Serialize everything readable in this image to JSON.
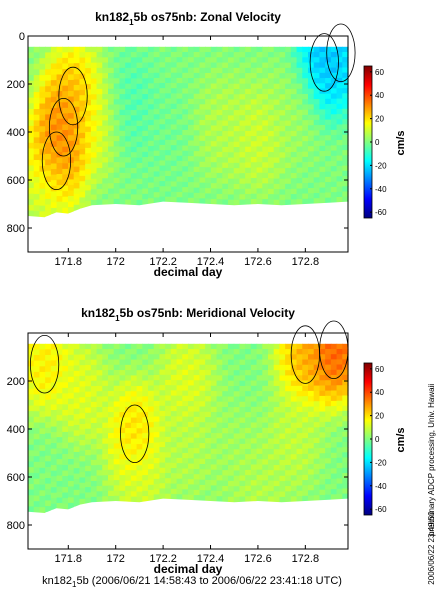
{
  "chart_data": [
    {
      "type": "heatmap",
      "title": "kn182_5b os75nb: Zonal Velocity",
      "title_main": "kn182",
      "title_sub": "1",
      "title_rest": "5b os75nb: Zonal Velocity",
      "xlabel": "decimal day",
      "ylabel": "",
      "xlim": [
        171.63,
        172.98
      ],
      "ylim": [
        900,
        0
      ],
      "x_ticks": [
        "171.8",
        "172",
        "172.2",
        "172.4",
        "172.6",
        "172.8"
      ],
      "x_tick_values": [
        171.8,
        172.0,
        172.2,
        172.4,
        172.6,
        172.8
      ],
      "y_ticks": [
        "0",
        "200",
        "400",
        "600",
        "800"
      ],
      "y_tick_values": [
        0,
        200,
        400,
        600,
        800
      ],
      "data_top_depth": 45,
      "colorbar": {
        "label": "cm/s",
        "range": [
          -65,
          65
        ],
        "ticks": [
          "60",
          "40",
          "20",
          "0",
          "-20",
          "-40",
          "-60"
        ],
        "tick_values": [
          60,
          40,
          20,
          0,
          -20,
          -40,
          -60
        ]
      },
      "bottom_depth_profile": {
        "x": [
          171.63,
          171.7,
          171.75,
          171.8,
          171.85,
          171.9,
          172.0,
          172.1,
          172.2,
          172.3,
          172.4,
          172.5,
          172.6,
          172.7,
          172.8,
          172.9,
          172.98
        ],
        "depth": [
          750,
          755,
          735,
          740,
          720,
          705,
          700,
          705,
          690,
          695,
          700,
          705,
          700,
          705,
          700,
          695,
          690
        ]
      },
      "features": [
        {
          "x": 171.78,
          "depth": 380,
          "value": 38
        },
        {
          "x": 171.75,
          "depth": 520,
          "value": 35
        },
        {
          "x": 171.82,
          "depth": 250,
          "value": 28
        },
        {
          "x": 171.92,
          "depth": 350,
          "value": 15
        },
        {
          "x": 172.05,
          "depth": 300,
          "value": -8
        },
        {
          "x": 172.2,
          "depth": 400,
          "value": -2
        },
        {
          "x": 172.45,
          "depth": 380,
          "value": 8
        },
        {
          "x": 172.6,
          "depth": 420,
          "value": 12
        },
        {
          "x": 172.75,
          "depth": 300,
          "value": 5
        },
        {
          "x": 172.88,
          "depth": 110,
          "value": -30
        },
        {
          "x": 172.95,
          "depth": 70,
          "value": -22
        },
        {
          "x": 171.7,
          "depth": 650,
          "value": 10
        }
      ]
    },
    {
      "type": "heatmap",
      "title": "kn182_5b os75nb: Meridional Velocity",
      "title_main": "kn182",
      "title_sub": "1",
      "title_rest": "5b os75nb: Meridional Velocity",
      "xlabel": "decimal day",
      "ylabel": "",
      "xlim": [
        171.63,
        172.98
      ],
      "ylim": [
        900,
        0
      ],
      "x_ticks": [
        "171.8",
        "172",
        "172.2",
        "172.4",
        "172.6",
        "172.8"
      ],
      "x_tick_values": [
        171.8,
        172.0,
        172.2,
        172.4,
        172.6,
        172.8
      ],
      "y_ticks": [
        "200",
        "400",
        "600",
        "800"
      ],
      "y_tick_values": [
        200,
        400,
        600,
        800
      ],
      "data_top_depth": 45,
      "colorbar": {
        "label": "cm/s",
        "range": [
          -65,
          65
        ],
        "ticks": [
          "60",
          "40",
          "20",
          "0",
          "-20",
          "-40",
          "-60"
        ],
        "tick_values": [
          60,
          40,
          20,
          0,
          -20,
          -40,
          -60
        ]
      },
      "bottom_depth_profile": {
        "x": [
          171.63,
          171.7,
          171.75,
          171.8,
          171.85,
          171.9,
          172.0,
          172.1,
          172.2,
          172.3,
          172.4,
          172.5,
          172.6,
          172.7,
          172.8,
          172.9,
          172.98
        ],
        "depth": [
          745,
          750,
          730,
          735,
          715,
          705,
          700,
          705,
          690,
          695,
          700,
          705,
          700,
          705,
          700,
          695,
          690
        ]
      },
      "features": [
        {
          "x": 172.92,
          "depth": 70,
          "value": 45
        },
        {
          "x": 172.8,
          "depth": 90,
          "value": 30
        },
        {
          "x": 171.7,
          "depth": 130,
          "value": 22
        },
        {
          "x": 171.85,
          "depth": 250,
          "value": 15
        },
        {
          "x": 172.08,
          "depth": 420,
          "value": 25
        },
        {
          "x": 172.1,
          "depth": 600,
          "value": 12
        },
        {
          "x": 172.3,
          "depth": 480,
          "value": 8
        },
        {
          "x": 172.5,
          "depth": 500,
          "value": 5
        },
        {
          "x": 172.75,
          "depth": 450,
          "value": 10
        },
        {
          "x": 171.72,
          "depth": 600,
          "value": 0
        },
        {
          "x": 172.3,
          "depth": 200,
          "value": 15
        },
        {
          "x": 172.6,
          "depth": 650,
          "value": 8
        }
      ]
    }
  ],
  "side_text": "preliminary ADCP processing,  Univ. Hawaii",
  "timestamp": "2006/06/22 23:49:50",
  "footer": {
    "main": "kn182",
    "sub": "1",
    "rest": "5b (2006/06/21 14:58:43 to 2006/06/22 23:41:18 UTC)"
  }
}
